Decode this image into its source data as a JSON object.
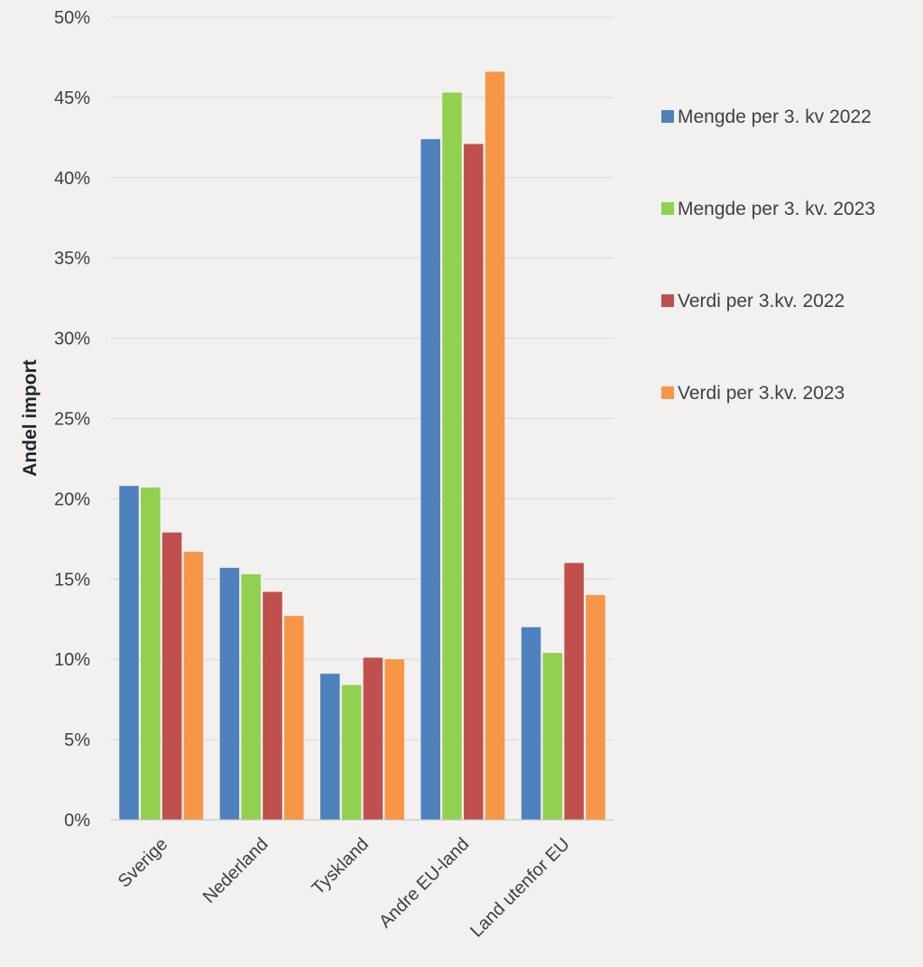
{
  "chart_data": {
    "type": "bar",
    "title": "",
    "xlabel": "",
    "ylabel": "Andel import",
    "ylim": [
      0,
      0.5
    ],
    "yticks": [
      "0%",
      "5%",
      "10%",
      "15%",
      "20%",
      "25%",
      "30%",
      "35%",
      "40%",
      "45%",
      "50%"
    ],
    "grid": true,
    "legend_position": "right",
    "categories": [
      "Sverige",
      "Nederland",
      "Tyskland",
      "Andre EU-land",
      "Land utenfor EU"
    ],
    "series": [
      {
        "name": "Mengde per 3. kv 2022",
        "color": "#4f81bd",
        "values": [
          0.208,
          0.157,
          0.091,
          0.424,
          0.12
        ]
      },
      {
        "name": "Mengde per 3. kv. 2023",
        "color": "#92d050",
        "values": [
          0.207,
          0.153,
          0.084,
          0.453,
          0.104
        ]
      },
      {
        "name": "Verdi per 3.kv. 2022",
        "color": "#c0504d",
        "values": [
          0.179,
          0.142,
          0.101,
          0.421,
          0.16
        ]
      },
      {
        "name": "Verdi per 3.kv. 2023",
        "color": "#f79646",
        "values": [
          0.167,
          0.127,
          0.1,
          0.466,
          0.14
        ]
      }
    ]
  }
}
